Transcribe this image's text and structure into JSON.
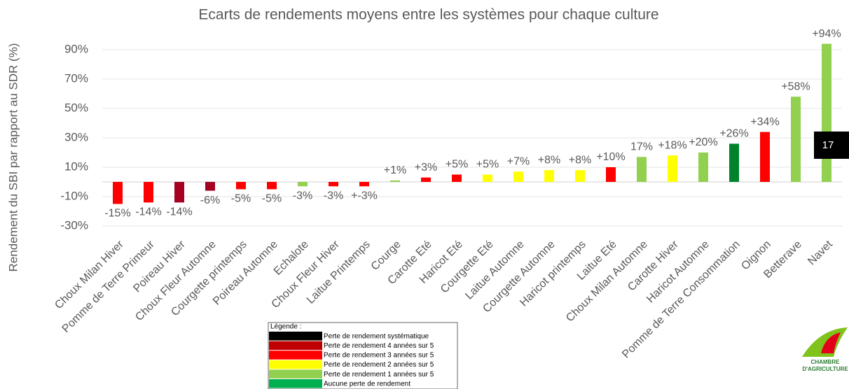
{
  "chart_data": {
    "type": "bar",
    "title": "Ecarts de rendements moyens entre les systèmes pour chaque culture",
    "y_label": "Rendement du SBI par rapport au SDR (%)",
    "categories": [
      "Choux Milan Hiver",
      "Pomme de Terre Primeur",
      "Poireau Hiver",
      "Choux Fleur Automne",
      "Courgette printemps",
      "Poireau Automne",
      "Echalote",
      "Choux Fleur Hiver",
      "Laitue Printemps",
      "Courge",
      "Carotte Eté",
      "Haricot Eté",
      "Courgette Eté",
      "Laitue Automne",
      "Courgette Automne",
      "Haricot printemps",
      "Laitue Eté",
      "Choux Milan Automne",
      "Carotte Hiver",
      "Haricot Automne",
      "Pomme de Terre Consommation",
      "Oignon",
      "Betterave",
      "Navet"
    ],
    "values": [
      -15,
      -14,
      -14,
      -6,
      -5,
      -5,
      -3,
      -3,
      -3,
      1,
      3,
      5,
      5,
      7,
      8,
      8,
      10,
      17,
      18,
      20,
      26,
      34,
      58,
      94
    ],
    "value_labels": [
      "-15%",
      "-14%",
      "-14%",
      "-6%",
      "-5%",
      "-5%",
      "-3%",
      "-3%",
      "+-3%",
      "+1%",
      "+3%",
      "+5%",
      "+5%",
      "+7%",
      "+8%",
      "+8%",
      "+10%",
      "17%",
      "+18%",
      "+20%",
      "+26%",
      "+34%",
      "+58%",
      "+94%"
    ],
    "colors": [
      "#ff0000",
      "#ff0000",
      "#a50021",
      "#a50021",
      "#ff0000",
      "#ff0000",
      "#92d050",
      "#ff0000",
      "#ff0000",
      "#92d050",
      "#ff0000",
      "#ff0000",
      "#ffff00",
      "#ffff00",
      "#ffff00",
      "#ffff00",
      "#ff0000",
      "#92d050",
      "#ffff00",
      "#92d050",
      "#00822b",
      "#ff0000",
      "#92d050",
      "#92d050"
    ],
    "ylim": [
      -30,
      100
    ],
    "yticks": [
      {
        "value": -30,
        "label": "-30%"
      },
      {
        "value": -10,
        "label": "-10%"
      },
      {
        "value": 10,
        "label": "10%"
      },
      {
        "value": 30,
        "label": "30%"
      },
      {
        "value": 50,
        "label": "50%"
      },
      {
        "value": 70,
        "label": "70%"
      },
      {
        "value": 90,
        "label": "90%"
      }
    ],
    "grid": true,
    "tooltip": "17",
    "legend": {
      "title": "Légende :",
      "items": [
        {
          "label": "Perte de rendement systématique",
          "color": "#000000"
        },
        {
          "label": "Perte de rendement 4 années sur 5",
          "color": "#c00000"
        },
        {
          "label": "Perte de rendement 3 années sur 5",
          "color": "#ff0000"
        },
        {
          "label": "Perte de rendement 2 années sur 5",
          "color": "#ffff00"
        },
        {
          "label": "Perte de rendement 1 années sur 5",
          "color": "#92d050"
        },
        {
          "label": "Aucune perte de rendement",
          "color": "#00b050"
        }
      ]
    },
    "logo": [
      "CHAMBRE",
      "D'AGRICULTURE"
    ]
  }
}
